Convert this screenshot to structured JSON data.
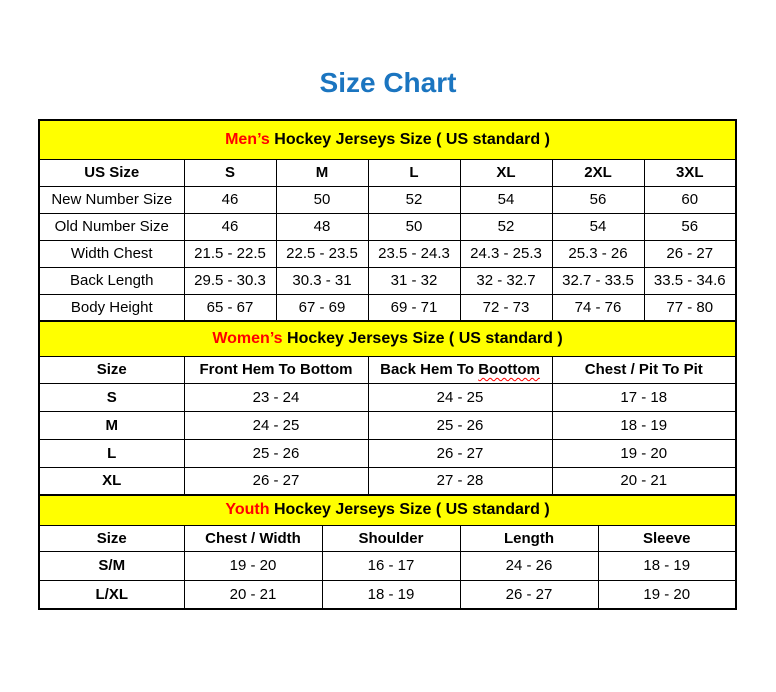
{
  "page": {
    "title": "Size Chart"
  },
  "colors": {
    "title": "#1B75C0",
    "section_heading_background": "#FFFF00",
    "section_heading_accent": "#FF0000",
    "border": "#000000",
    "text": "#000000",
    "background": "#FFFFFF"
  },
  "sections": [
    {
      "id": "mens",
      "heading": {
        "accent": "Men’s",
        "rest": " Hockey Jerseys Size ( US standard )"
      },
      "columns": [
        "US Size",
        "S",
        "M",
        "L",
        "XL",
        "2XL",
        "3XL"
      ],
      "rows": [
        {
          "label": "New Number Size",
          "values": [
            "46",
            "50",
            "52",
            "54",
            "56",
            "60"
          ]
        },
        {
          "label": "Old Number Size",
          "values": [
            "46",
            "48",
            "50",
            "52",
            "54",
            "56"
          ]
        },
        {
          "label": "Width Chest",
          "values": [
            "21.5 - 22.5",
            "22.5 - 23.5",
            "23.5 - 24.3",
            "24.3 - 25.3",
            "25.3 - 26",
            "26 - 27"
          ]
        },
        {
          "label": "Back Length",
          "values": [
            "29.5 - 30.3",
            "30.3 - 31",
            "31 - 32",
            "32 - 32.7",
            "32.7 - 33.5",
            "33.5 - 34.6"
          ]
        },
        {
          "label": "Body Height",
          "values": [
            "65 - 67",
            "67 - 69",
            "69 - 71",
            "72 - 73",
            "74 - 76",
            "77 - 80"
          ]
        }
      ]
    },
    {
      "id": "womens",
      "heading": {
        "accent": "Women’s",
        "rest": " Hockey Jerseys Size ( US standard )"
      },
      "columns": [
        {
          "text": "Size"
        },
        {
          "text": "Front Hem To Bottom"
        },
        {
          "text": "Back Hem To Boottom",
          "misspelled_word": "Boottom"
        },
        {
          "text": "Chest / Pit To Pit"
        }
      ],
      "rows": [
        {
          "label": "S",
          "values": [
            "23 - 24",
            "24 - 25",
            "17 - 18"
          ]
        },
        {
          "label": "M",
          "values": [
            "24 - 25",
            "25 - 26",
            "18 - 19"
          ]
        },
        {
          "label": "L",
          "values": [
            "25 - 26",
            "26 - 27",
            "19 - 20"
          ]
        },
        {
          "label": "XL",
          "values": [
            "26 - 27",
            "27 - 28",
            "20 - 21"
          ]
        }
      ]
    },
    {
      "id": "youth",
      "heading": {
        "accent": "Youth",
        "rest": " Hockey Jerseys Size ( US standard )"
      },
      "columns": [
        "Size",
        "Chest / Width",
        "Shoulder",
        "Length",
        "Sleeve"
      ],
      "rows": [
        {
          "label": "S/M",
          "values": [
            "19 - 20",
            "16 - 17",
            "24 - 26",
            "18 - 19"
          ]
        },
        {
          "label": "L/XL",
          "values": [
            "20 - 21",
            "18 - 19",
            "26 - 27",
            "19 - 20"
          ]
        }
      ]
    }
  ]
}
